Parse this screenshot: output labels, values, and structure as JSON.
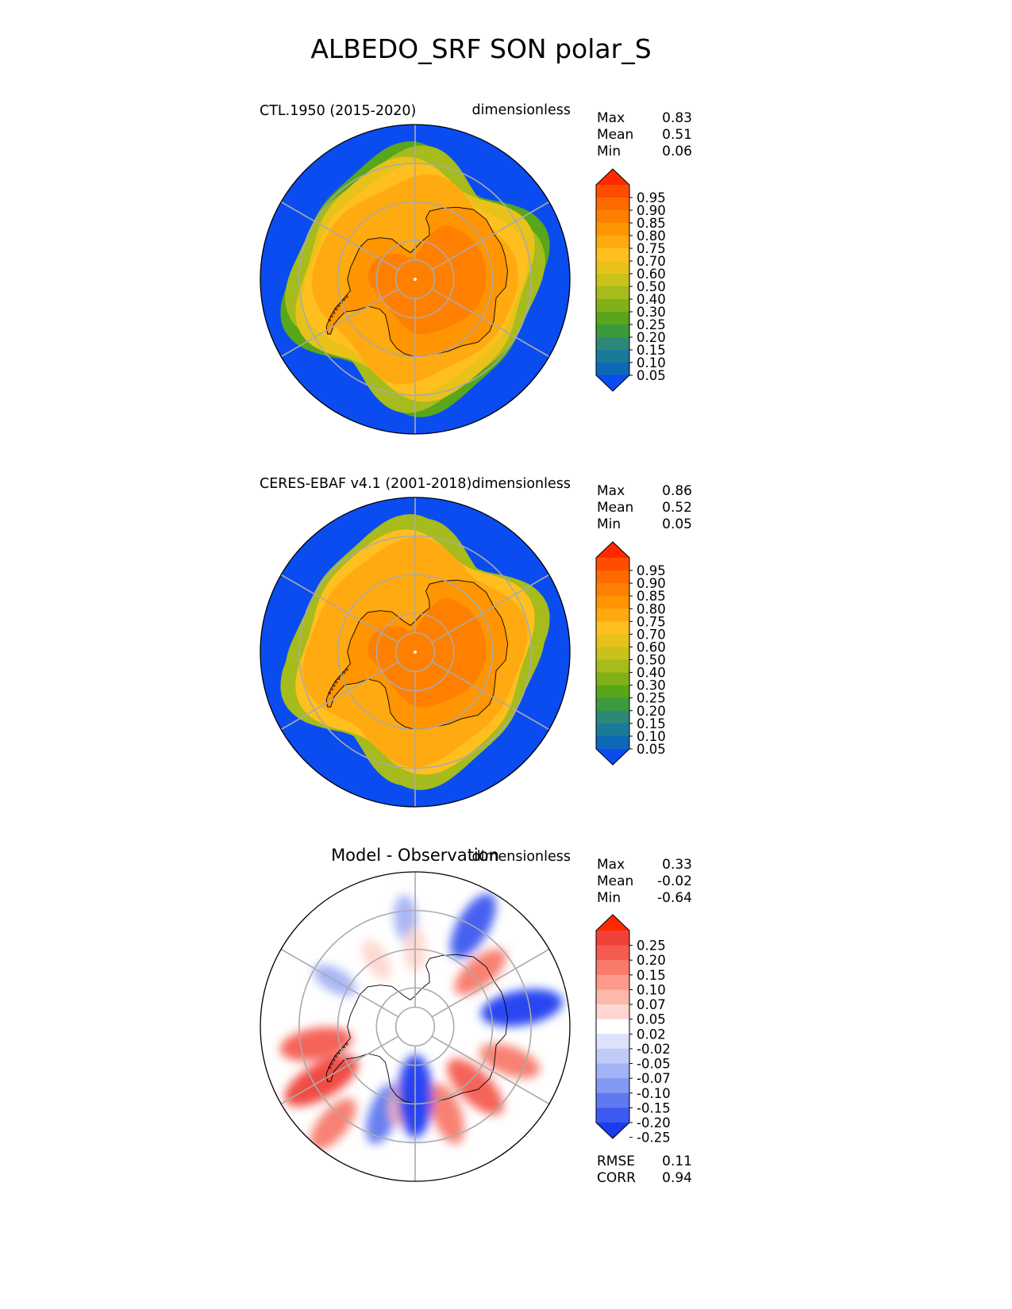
{
  "figure": {
    "title": "ALBEDO_SRF SON polar_S"
  },
  "chart_data": [
    {
      "type": "heatmap",
      "projection": "south polar stereographic",
      "title": "CTL.1950 (2015-2020)",
      "units": "dimensionless",
      "stats": [
        {
          "label": "Max",
          "value": "0.83"
        },
        {
          "label": "Mean",
          "value": "0.51"
        },
        {
          "label": "Min",
          "value": "0.06"
        }
      ],
      "colorbar": {
        "ticks": [
          "0.95",
          "0.90",
          "0.85",
          "0.80",
          "0.75",
          "0.70",
          "0.60",
          "0.50",
          "0.40",
          "0.30",
          "0.25",
          "0.20",
          "0.15",
          "0.10",
          "0.05"
        ],
        "colors": [
          "#ff2a00",
          "#ff4d00",
          "#ff6a00",
          "#ff8000",
          "#ff9500",
          "#ffaa10",
          "#ffbf1f",
          "#e8c21a",
          "#c8c21a",
          "#a6bb1c",
          "#82b018",
          "#58a61a",
          "#3c9a3c",
          "#2e8878",
          "#1a7a9a",
          "#0d68b8",
          "#0a4cf0"
        ],
        "extend": "both"
      },
      "regions": {
        "ocean": 0.05,
        "sea_ice_outer": 0.35,
        "sea_ice_mid": 0.55,
        "sea_ice_inner": 0.7,
        "coast": 0.78,
        "interior": 0.82,
        "peninsula": 0.8
      }
    },
    {
      "type": "heatmap",
      "projection": "south polar stereographic",
      "title": "CERES-EBAF v4.1 (2001-2018)",
      "units": "dimensionless",
      "stats": [
        {
          "label": "Max",
          "value": "0.86"
        },
        {
          "label": "Mean",
          "value": "0.52"
        },
        {
          "label": "Min",
          "value": "0.05"
        }
      ],
      "colorbar": {
        "ticks": [
          "0.95",
          "0.90",
          "0.85",
          "0.80",
          "0.75",
          "0.70",
          "0.60",
          "0.50",
          "0.40",
          "0.30",
          "0.25",
          "0.20",
          "0.15",
          "0.10",
          "0.05"
        ],
        "colors": [
          "#ff2a00",
          "#ff4d00",
          "#ff6a00",
          "#ff8000",
          "#ff9500",
          "#ffaa10",
          "#ffbf1f",
          "#e8c21a",
          "#c8c21a",
          "#a6bb1c",
          "#82b018",
          "#58a61a",
          "#3c9a3c",
          "#2e8878",
          "#1a7a9a",
          "#0d68b8",
          "#0a4cf0"
        ],
        "extend": "both"
      },
      "regions": {
        "ocean": 0.05,
        "sea_ice_outer": 0.4,
        "sea_ice_mid": 0.62,
        "sea_ice_inner": 0.72,
        "coast": 0.78,
        "interior": 0.83,
        "peninsula": 0.8
      }
    },
    {
      "type": "heatmap",
      "projection": "south polar stereographic",
      "title": "Model - Observation",
      "units": "dimensionless",
      "stats": [
        {
          "label": "Max",
          "value": "0.33"
        },
        {
          "label": "Mean",
          "value": "-0.02"
        },
        {
          "label": "Min",
          "value": "-0.64"
        }
      ],
      "extra_stats": [
        {
          "label": "RMSE",
          "value": "0.11"
        },
        {
          "label": "CORR",
          "value": "0.94"
        }
      ],
      "colorbar": {
        "ticks": [
          "0.25",
          "0.20",
          "0.15",
          "0.10",
          "0.07",
          "0.05",
          "0.02",
          "-0.02",
          "-0.05",
          "-0.07",
          "-0.10",
          "-0.15",
          "-0.20",
          "-0.25"
        ],
        "colors": [
          "#ff2a00",
          "#f0403a",
          "#f55b50",
          "#f87a6a",
          "#fb9a8a",
          "#fdb8ac",
          "#fed6cf",
          "#ffffff",
          "#dce2fb",
          "#c1cbf8",
          "#a3b3f5",
          "#8398f2",
          "#6079ef",
          "#3d5af0",
          "#1a3cf0"
        ],
        "extend": "both"
      },
      "blobs": [
        {
          "lon": 100,
          "lat": -62,
          "value": -0.25
        },
        {
          "lon": 150,
          "lat": -60,
          "value": -0.2
        },
        {
          "lon": -175,
          "lat": -62,
          "value": -0.07
        },
        {
          "lon": 70,
          "lat": -64,
          "value": 0.15
        },
        {
          "lon": 45,
          "lat": -68,
          "value": 0.2
        },
        {
          "lon": 20,
          "lat": -66,
          "value": 0.15
        },
        {
          "lon": -80,
          "lat": -64,
          "value": 0.2
        },
        {
          "lon": -60,
          "lat": -62,
          "value": 0.25
        },
        {
          "lon": -40,
          "lat": -57,
          "value": 0.15
        },
        {
          "lon": -20,
          "lat": -66,
          "value": -0.15
        },
        {
          "lon": -10,
          "lat": -70,
          "value": 0.07
        },
        {
          "lon": 0,
          "lat": -72,
          "value": -0.25
        },
        {
          "lon": -120,
          "lat": -66,
          "value": -0.07
        },
        {
          "lon": 130,
          "lat": -68,
          "value": 0.15
        },
        {
          "lon": 180,
          "lat": -70,
          "value": 0.05
        },
        {
          "lon": -150,
          "lat": -70,
          "value": 0.05
        }
      ]
    }
  ]
}
